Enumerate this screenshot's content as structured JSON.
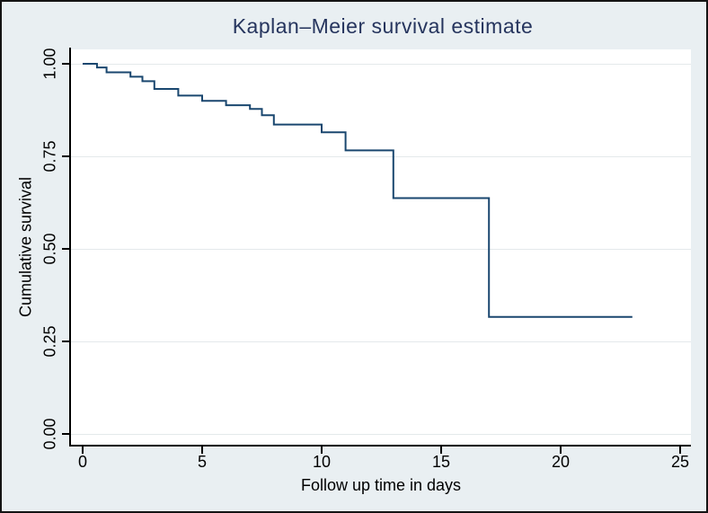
{
  "figure": {
    "background": "#e9eff2",
    "plot_background": "#ffffff",
    "border_color": "#141414"
  },
  "chart_data": {
    "type": "line",
    "line_style": "step-after",
    "title": "Kaplan–Meier survival estimate",
    "xlabel": "Follow up time in days",
    "ylabel": "Cumulative survival",
    "xlim": [
      0,
      25
    ],
    "ylim": [
      0.0,
      1.0
    ],
    "xticks": [
      0,
      5,
      10,
      15,
      20,
      25
    ],
    "yticks": [
      0.0,
      0.25,
      0.5,
      0.75,
      1.0
    ],
    "ytick_labels": [
      "0.00",
      "0.25",
      "0.50",
      "0.75",
      "1.00"
    ],
    "grid": "horizontal gridlines at y ticks",
    "legend": "none",
    "series": [
      {
        "name": "Kaplan–Meier survival estimate",
        "color": "#1a476f",
        "points": [
          [
            0,
            1.0
          ],
          [
            0.6,
            0.99
          ],
          [
            1,
            0.977
          ],
          [
            2,
            0.965
          ],
          [
            2.5,
            0.953
          ],
          [
            3,
            0.932
          ],
          [
            4,
            0.914
          ],
          [
            5,
            0.9
          ],
          [
            6,
            0.888
          ],
          [
            7,
            0.878
          ],
          [
            7.5,
            0.861
          ],
          [
            8,
            0.836
          ],
          [
            10,
            0.815
          ],
          [
            11,
            0.766
          ],
          [
            13,
            0.637
          ],
          [
            17,
            0.316
          ],
          [
            23,
            0.316
          ]
        ]
      }
    ],
    "colors": {
      "title": "#26355e",
      "axis_text": "#000000",
      "gridline": "#e4e9eb",
      "curve": "#1a476f"
    }
  }
}
